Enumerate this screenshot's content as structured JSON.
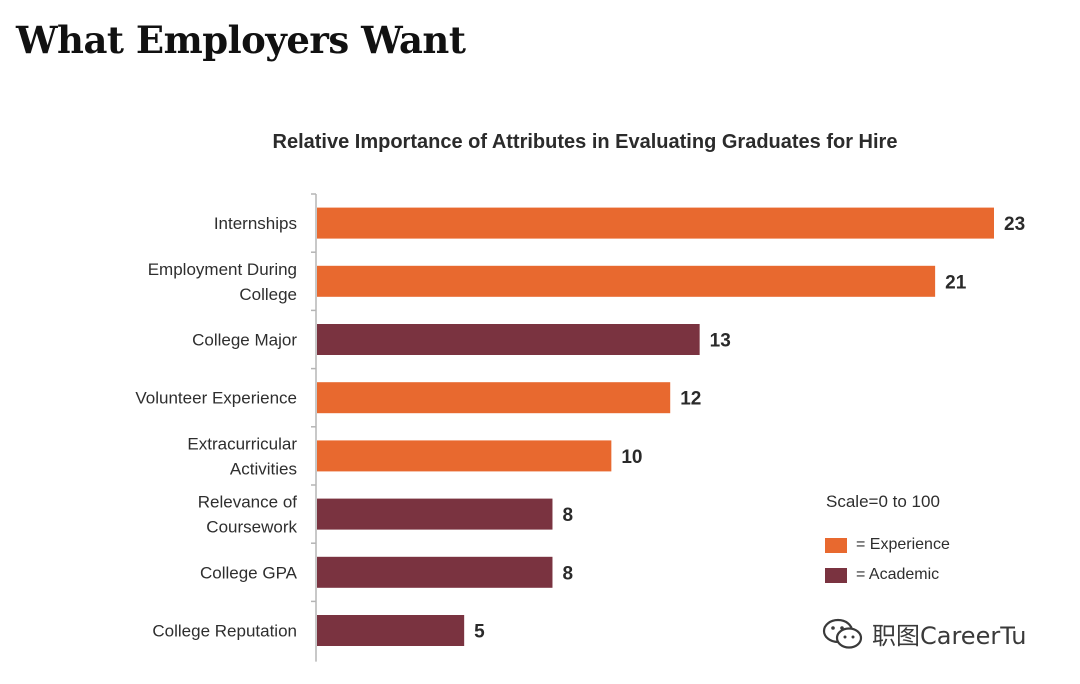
{
  "page": {
    "title": "What Employers Want"
  },
  "chart_data": {
    "type": "bar",
    "orientation": "horizontal",
    "title": "Relative Importance of Attributes in Evaluating Graduates for Hire",
    "scale_note": "Scale=0 to 100",
    "categories": [
      "Internships",
      "Employment During College",
      "College Major",
      "Volunteer Experience",
      "Extracurricular Activities",
      "Relevance of Coursework",
      "College GPA",
      "College Reputation"
    ],
    "category_lines": [
      [
        "Internships"
      ],
      [
        "Employment During",
        "College"
      ],
      [
        "College Major"
      ],
      [
        "Volunteer Experience"
      ],
      [
        "Extracurricular",
        "Activities"
      ],
      [
        "Relevance of",
        "Coursework"
      ],
      [
        "College GPA"
      ],
      [
        "College Reputation"
      ]
    ],
    "values": [
      23,
      21,
      13,
      12,
      10,
      8,
      8,
      5
    ],
    "groups": [
      "experience",
      "experience",
      "academic",
      "experience",
      "experience",
      "academic",
      "academic",
      "academic"
    ],
    "legend": [
      {
        "key": "experience",
        "label": "= Experience",
        "color": "#E8692F"
      },
      {
        "key": "academic",
        "label": "= Academic",
        "color": "#7A3340"
      }
    ],
    "xlim": [
      0,
      23
    ],
    "grid": false
  },
  "colors": {
    "experience": "#E8692F",
    "academic": "#7A3340",
    "axis": "#b5b5b5"
  },
  "watermark": {
    "icon": "wechat-icon",
    "text": "职图CareerTu"
  }
}
